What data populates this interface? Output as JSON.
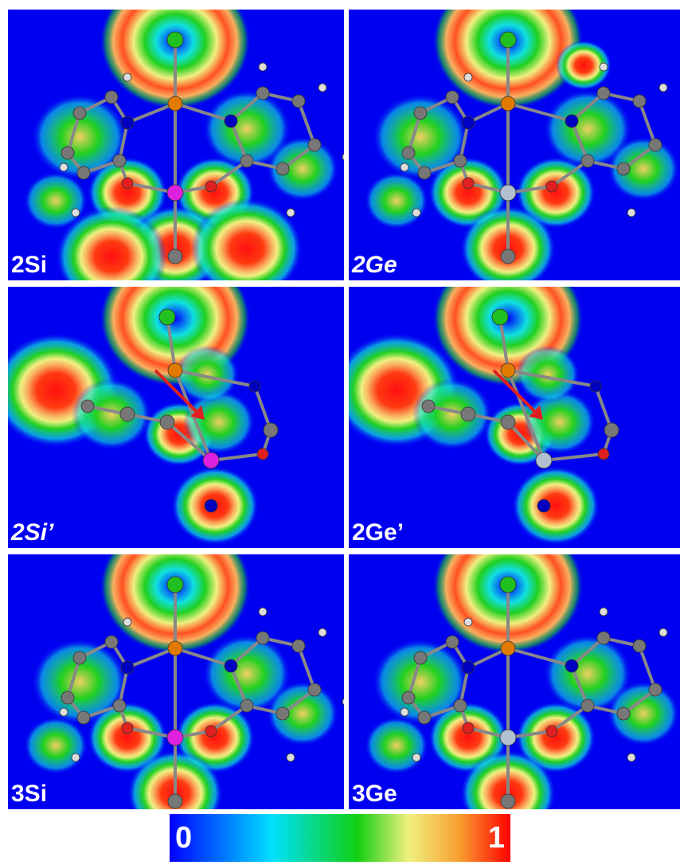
{
  "panels": [
    {
      "label": "2Si",
      "italic": false
    },
    {
      "label": "2Ge",
      "italic": true
    },
    {
      "label": "2Si’",
      "italic": true
    },
    {
      "label": "2Ge’",
      "italic": false
    },
    {
      "label": "3Si",
      "italic": false
    },
    {
      "label": "3Ge",
      "italic": false
    }
  ],
  "colorbar": {
    "min": "0",
    "max": "1"
  }
}
